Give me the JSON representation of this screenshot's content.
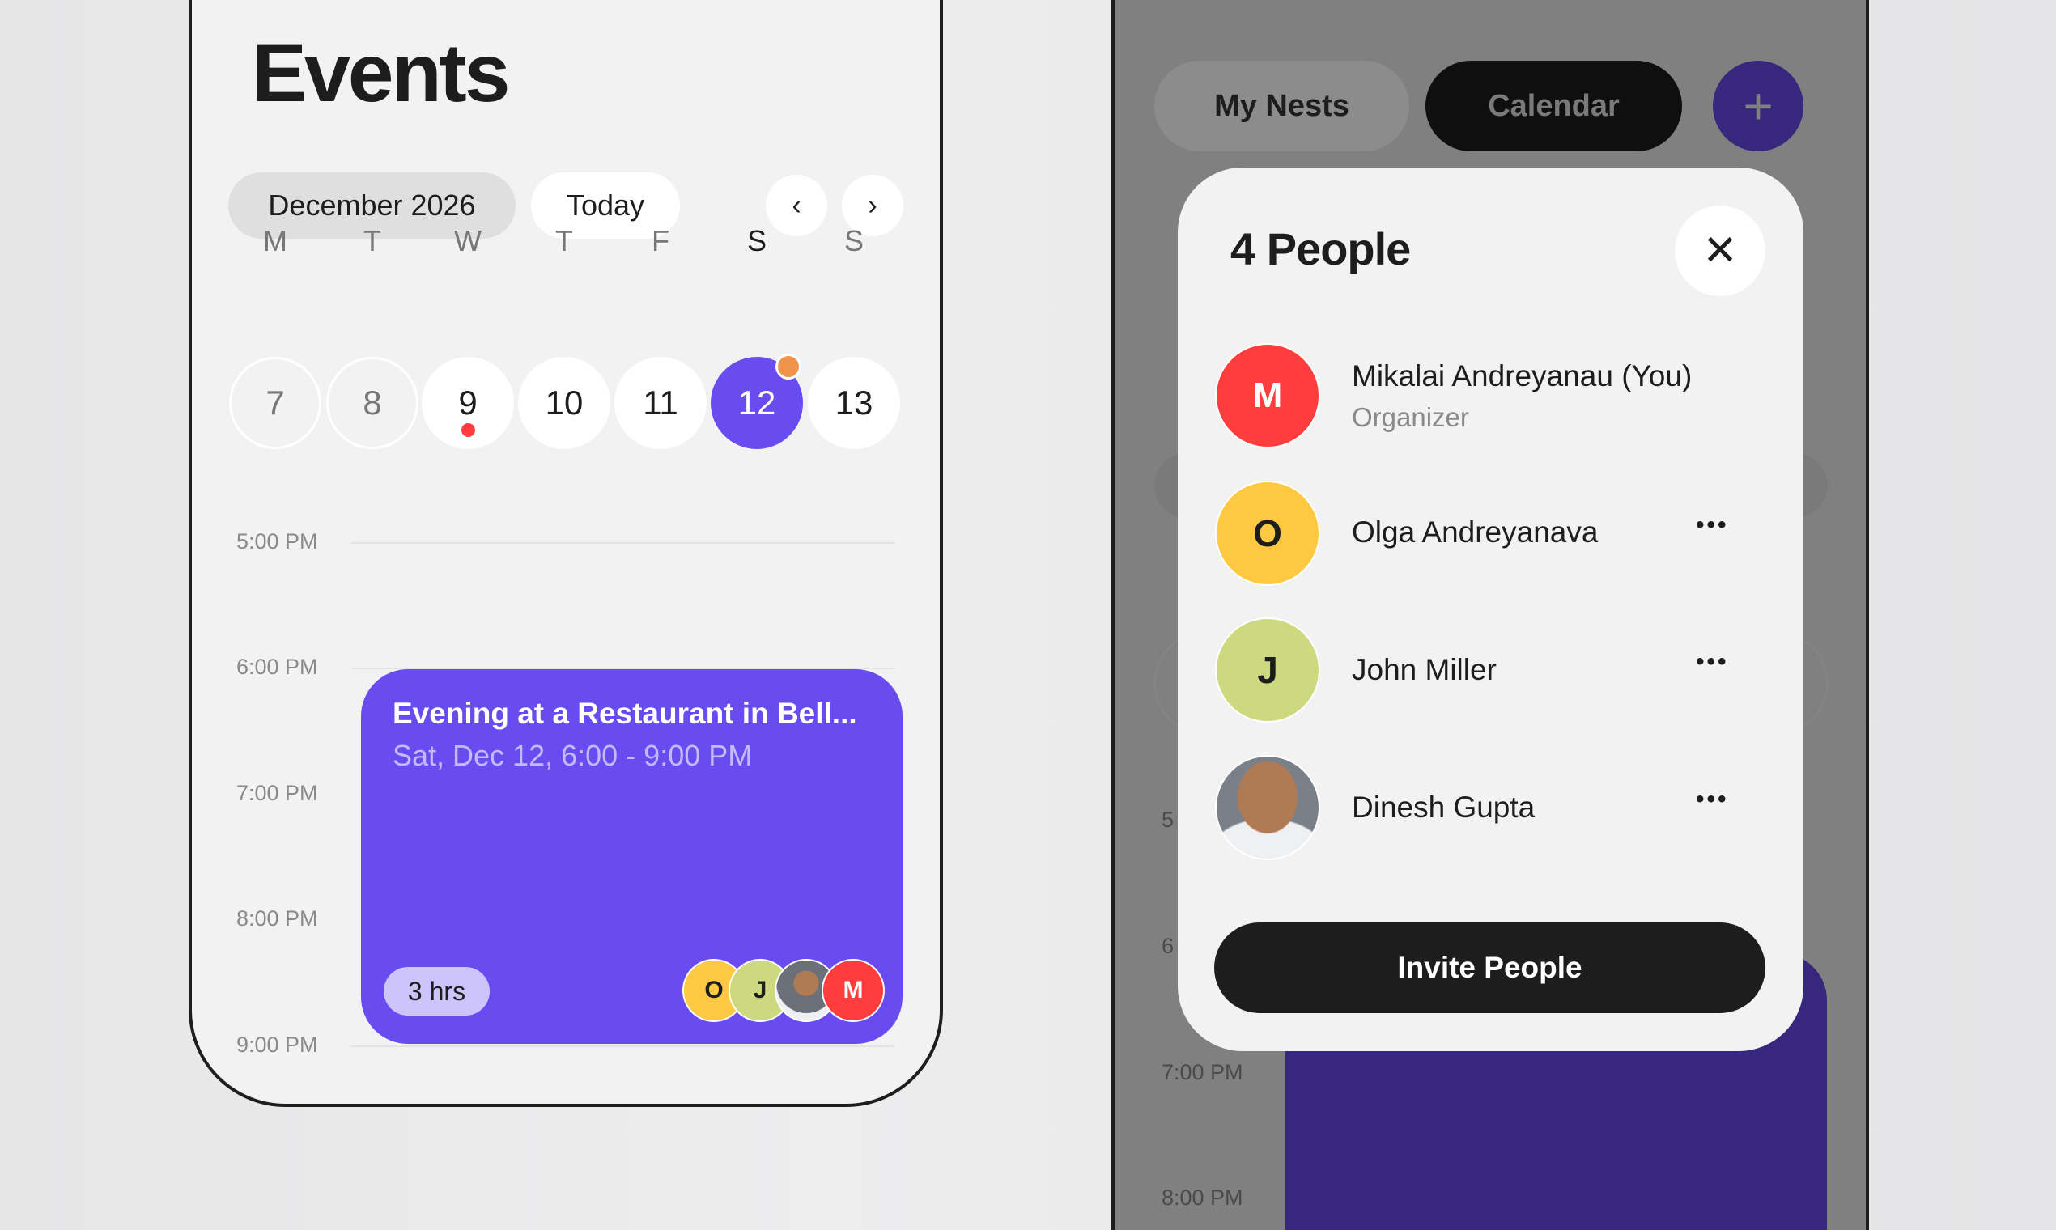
{
  "left": {
    "title": "Events",
    "month": "December 2026",
    "today": "Today",
    "weekdays": [
      "M",
      "T",
      "W",
      "T",
      "F",
      "S",
      "S"
    ],
    "days": [
      "7",
      "8",
      "9",
      "10",
      "11",
      "12",
      "13"
    ],
    "selected_day": "12",
    "times": [
      "5:00 PM",
      "6:00 PM",
      "7:00 PM",
      "8:00 PM",
      "9:00 PM"
    ],
    "event": {
      "title": "Evening at a Restaurant in Bell...",
      "subtitle": "Sat, Dec 12, 6:00 - 9:00 PM",
      "duration": "3 hrs",
      "attendees": [
        "O",
        "J",
        "",
        "M"
      ]
    }
  },
  "right": {
    "tabs": {
      "my_nests": "My Nests",
      "calendar": "Calendar"
    },
    "add_icon": "+",
    "times": [
      "5",
      "6",
      "7:00 PM",
      "8:00 PM"
    ],
    "modal": {
      "title": "4 People",
      "people": [
        {
          "initial": "M",
          "name": "Mikalai Andreyanau (You)",
          "role": "Organizer",
          "color": "#ff3d3d"
        },
        {
          "initial": "O",
          "name": "Olga Andreyanava",
          "color": "#fec843"
        },
        {
          "initial": "J",
          "name": "John Miller",
          "color": "#cdd97e"
        },
        {
          "initial": "",
          "name": "Dinesh Gupta"
        }
      ],
      "more": "•••",
      "invite": "Invite People"
    }
  },
  "colors": {
    "accent": "#684cf0",
    "dark": "#1d1d1d",
    "red": "#ff3d3d",
    "yellow": "#fec843",
    "green": "#cdd97e",
    "orange": "#ef944a"
  }
}
